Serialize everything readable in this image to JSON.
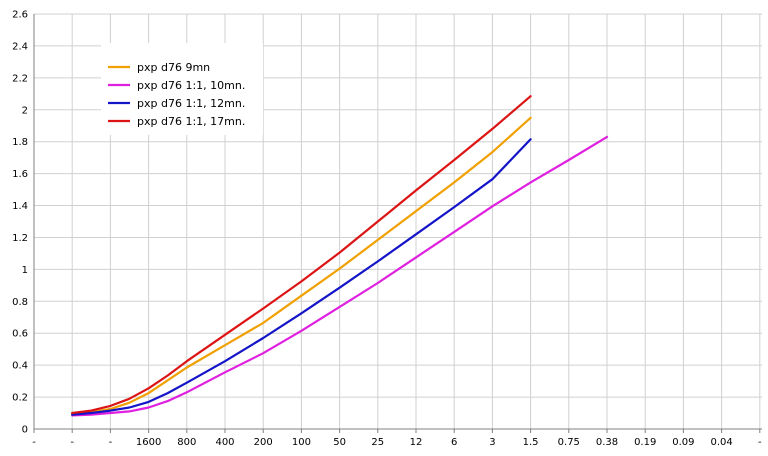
{
  "chart_data": {
    "type": "line",
    "title": "",
    "xlabel": "",
    "ylabel": "",
    "categories": [
      "-",
      "-",
      "-",
      "1600",
      "800",
      "400",
      "200",
      "100",
      "50",
      "25",
      "12",
      "6",
      "3",
      "1.5",
      "0.75",
      "0.38",
      "0.19",
      "0.09",
      "0.04",
      "-"
    ],
    "y_ticks": [
      "0",
      "0.2",
      "0.4",
      "0.6",
      "0.8",
      "1",
      "1.2",
      "1.4",
      "1.6",
      "1.8",
      "2",
      "2.2",
      "2.4",
      "2.6"
    ],
    "ylim": [
      0,
      2.6
    ],
    "grid": true,
    "legend_position": "top-left",
    "series": [
      {
        "name": "pxp d76 9mn",
        "color": "#f0a000",
        "x": [
          1,
          1.5,
          2,
          2.5,
          3,
          3.5,
          4,
          5,
          6,
          7,
          8,
          9,
          10,
          11,
          12,
          13
        ],
        "values": [
          0.095,
          0.105,
          0.125,
          0.165,
          0.225,
          0.305,
          0.385,
          0.525,
          0.665,
          0.835,
          1.005,
          1.185,
          1.365,
          1.545,
          1.735,
          1.95
        ]
      },
      {
        "name": "pxp d76 1:1, 10mn.",
        "color": "#e020e0",
        "x": [
          1,
          1.5,
          2,
          2.5,
          3,
          3.5,
          4,
          5,
          6,
          7,
          8,
          9,
          10,
          11,
          12,
          13,
          14,
          15
        ],
        "values": [
          0.085,
          0.09,
          0.1,
          0.11,
          0.135,
          0.175,
          0.23,
          0.355,
          0.475,
          0.615,
          0.765,
          0.915,
          1.075,
          1.235,
          1.395,
          1.545,
          1.685,
          1.83
        ]
      },
      {
        "name": "pxp d76 1:1, 12mn.",
        "color": "#1414c8",
        "x": [
          1,
          1.5,
          2,
          2.5,
          3,
          3.5,
          4,
          5,
          6,
          7,
          8,
          9,
          10,
          11,
          12,
          13
        ],
        "values": [
          0.09,
          0.1,
          0.115,
          0.135,
          0.17,
          0.225,
          0.29,
          0.425,
          0.57,
          0.725,
          0.885,
          1.05,
          1.22,
          1.39,
          1.565,
          1.815
        ]
      },
      {
        "name": "pxp d76 1:1, 17mn.",
        "color": "#dc1414",
        "x": [
          1,
          1.5,
          2,
          2.5,
          3,
          3.5,
          4,
          5,
          6,
          7,
          8,
          9,
          10,
          11,
          12,
          13
        ],
        "values": [
          0.1,
          0.115,
          0.145,
          0.19,
          0.255,
          0.335,
          0.425,
          0.59,
          0.755,
          0.925,
          1.105,
          1.3,
          1.495,
          1.685,
          1.88,
          2.085
        ]
      }
    ]
  }
}
